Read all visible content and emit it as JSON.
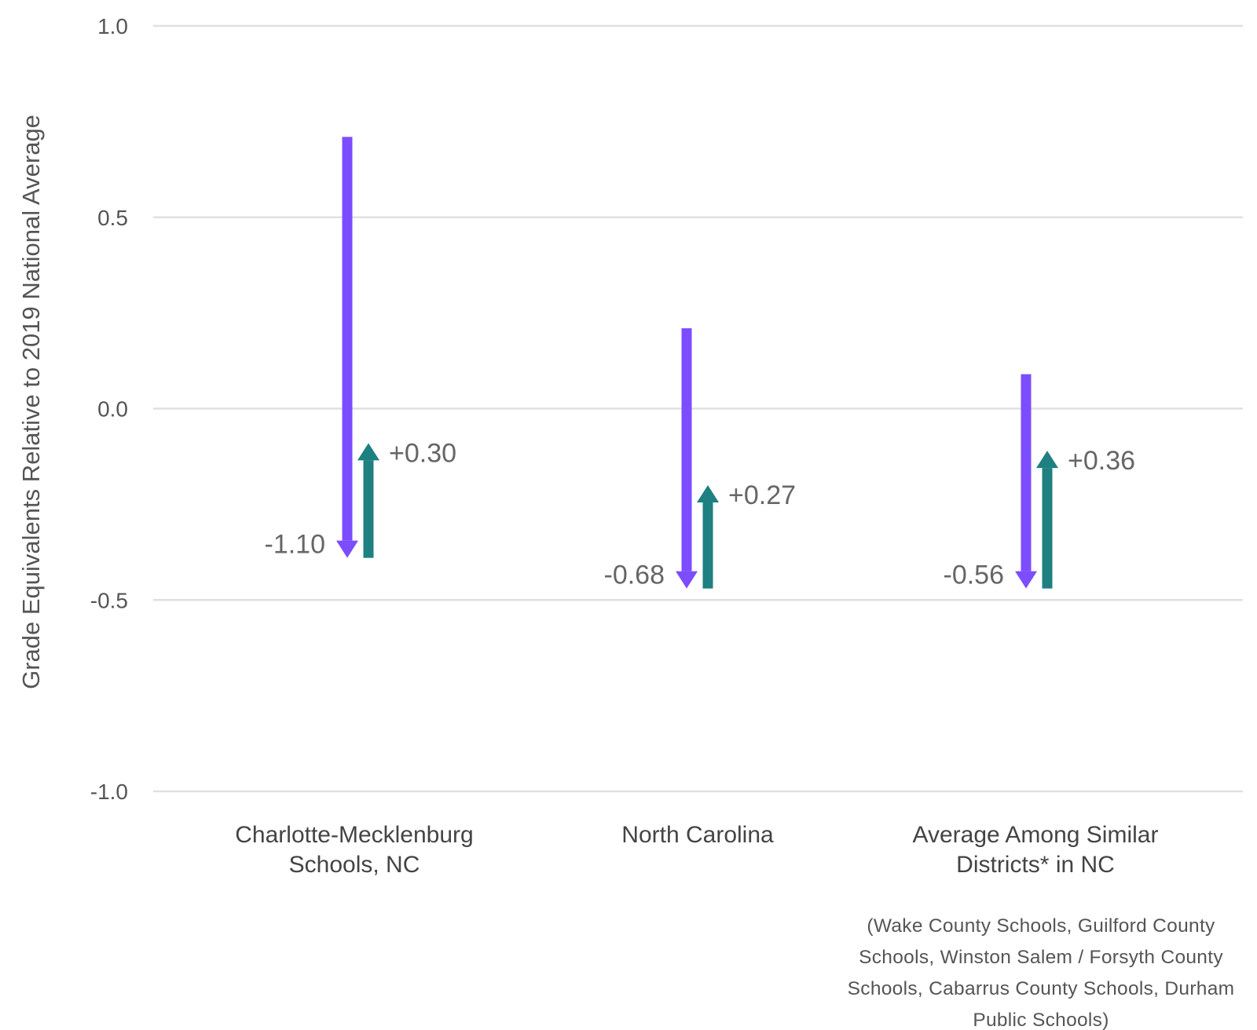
{
  "chart_data": {
    "type": "bar",
    "ylabel": "Grade Equivalents Relative to 2019 National Average",
    "ylim": [
      -1.0,
      1.0
    ],
    "yticks": [
      1.0,
      0.5,
      0.0,
      -0.5,
      -1.0
    ],
    "ytick_labels": [
      "1.0",
      "0.5",
      "0.0",
      "-0.5",
      "-1.0"
    ],
    "grid": true,
    "colors": {
      "decline": "#7c4dff",
      "recovery": "#1e8080"
    },
    "categories": [
      {
        "label_lines": [
          "Charlotte-Mecklenburg",
          "Schools, NC"
        ],
        "start": 0.71,
        "decline": -1.1,
        "decline_label": "-1.10",
        "recovery": 0.3,
        "recovery_label": "+0.30"
      },
      {
        "label_lines": [
          "North Carolina"
        ],
        "start": 0.21,
        "decline": -0.68,
        "decline_label": "-0.68",
        "recovery": 0.27,
        "recovery_label": "+0.27"
      },
      {
        "label_lines": [
          "Average Among Similar",
          "Districts* in NC"
        ],
        "start": 0.09,
        "decline": -0.56,
        "decline_label": "-0.56",
        "recovery": 0.36,
        "recovery_label": "+0.36"
      }
    ],
    "note_lines": [
      "(Wake County Schools, Guilford County",
      "Schools, Winston Salem / Forsyth County",
      "Schools, Cabarrus County Schools, Durham",
      "Public Schools)"
    ]
  }
}
